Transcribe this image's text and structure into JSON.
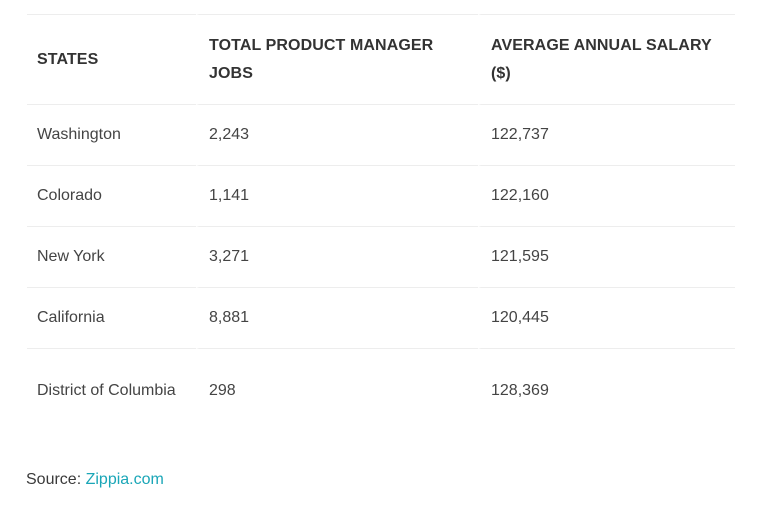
{
  "table": {
    "headers": [
      "STATES",
      "TOTAL PRODUCT MANAGER JOBS",
      "AVERAGE ANNUAL SALARY ($)"
    ],
    "rows": [
      [
        "Washington",
        "2,243",
        "122,737"
      ],
      [
        "Colorado",
        "1,141",
        "122,160"
      ],
      [
        "New York",
        "3,271",
        "121,595"
      ],
      [
        "California",
        "8,881",
        "120,445"
      ],
      [
        "District of Columbia",
        "298",
        "128,369"
      ]
    ]
  },
  "source": {
    "label": "Source:",
    "link_text": "Zippia.com"
  }
}
